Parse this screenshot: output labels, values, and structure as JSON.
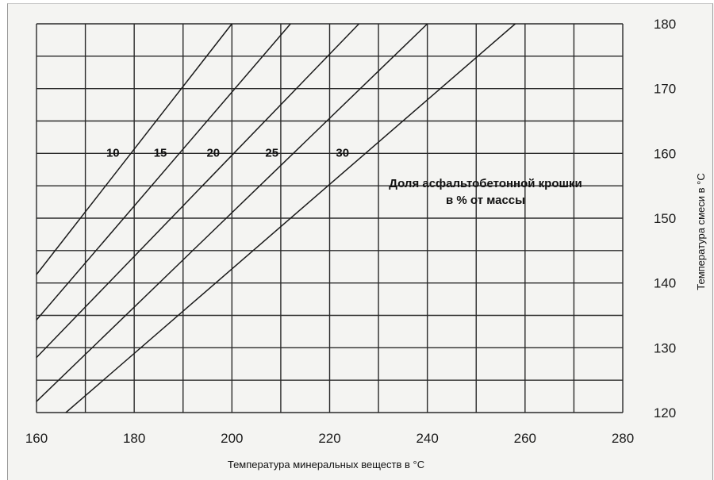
{
  "chart_data": {
    "type": "line",
    "title": "",
    "xlabel": "Температура минеральных веществ в °C",
    "ylabel": "Температура смеси в °C",
    "xlim": [
      160,
      280
    ],
    "ylim": [
      120,
      180
    ],
    "x_ticks": [
      "160",
      "180",
      "200",
      "220",
      "240",
      "260",
      "280"
    ],
    "y_ticks": [
      "120",
      "130",
      "140",
      "150",
      "160",
      "170",
      "180"
    ],
    "grid": true,
    "annotation": [
      "Доля асфальтобетонной крошки",
      "в % от массы"
    ],
    "series": [
      {
        "name": "10",
        "points": [
          [
            160,
            141.3
          ],
          [
            200,
            180
          ]
        ]
      },
      {
        "name": "15",
        "points": [
          [
            160,
            134.3
          ],
          [
            212,
            180
          ]
        ]
      },
      {
        "name": "20",
        "points": [
          [
            160,
            128.5
          ],
          [
            226,
            180
          ]
        ]
      },
      {
        "name": "25",
        "points": [
          [
            160,
            121.7
          ],
          [
            240,
            180
          ]
        ]
      },
      {
        "name": "30",
        "points": [
          [
            166,
            120
          ],
          [
            258,
            180
          ]
        ]
      }
    ]
  }
}
